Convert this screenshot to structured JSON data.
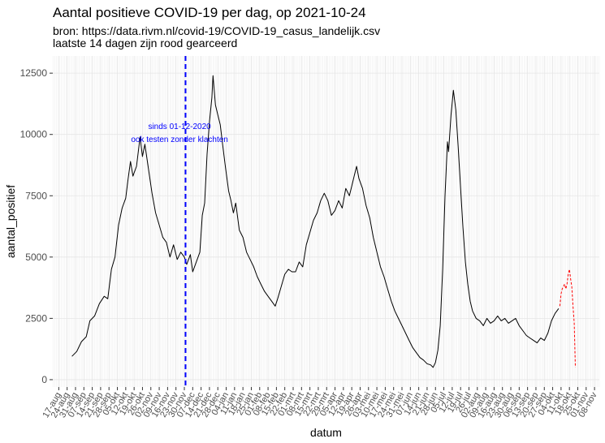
{
  "title": "Aantal positieve COVID-19 per dag, op 2021-10-24",
  "subtitle_line1": "bron: https://data.rivm.nl/covid-19/COVID-19_casus_landelijk.csv",
  "subtitle_line2": "laatste 14 dagen zijn rood gearceerd",
  "chart_data": {
    "type": "line",
    "title": "Aantal positieve COVID-19 per dag, op 2021-10-24",
    "xlabel": "datum",
    "ylabel": "aantal_positief",
    "ylim": [
      -300,
      13200
    ],
    "yticks": [
      0,
      2500,
      5000,
      7500,
      10000,
      12500
    ],
    "grid": true,
    "legend": "none",
    "xticks": [
      "17-aug",
      "24-aug",
      "31-aug",
      "07-sep",
      "14-sep",
      "21-sep",
      "28-sep",
      "05-okt",
      "12-okt",
      "19-okt",
      "26-okt",
      "02-nov",
      "09-nov",
      "16-nov",
      "23-nov",
      "30-nov",
      "07-dec",
      "14-dec",
      "21-dec",
      "28-dec",
      "04-jan",
      "11-jan",
      "18-jan",
      "25-jan",
      "01-feb",
      "08-feb",
      "15-feb",
      "22-feb",
      "01-mrt",
      "08-mrt",
      "15-mrt",
      "22-mrt",
      "29-mrt",
      "05-apr",
      "12-apr",
      "19-apr",
      "26-apr",
      "03-mei",
      "10-mei",
      "17-mei",
      "24-mei",
      "31-mei",
      "07-jun",
      "14-jun",
      "21-jun",
      "28-jun",
      "05-jul",
      "12-jul",
      "19-jul",
      "26-jul",
      "02-aug",
      "09-aug",
      "16-aug",
      "23-aug",
      "30-aug",
      "06-sep",
      "13-sep",
      "20-sep",
      "27-sep",
      "04-okt",
      "11-okt",
      "18-okt",
      "25-okt",
      "01-nov",
      "08-nov"
    ],
    "series": [
      {
        "color": "#000000",
        "style": "solid",
        "points": [
          [
            "2020-08-28",
            950
          ],
          [
            "2020-09-01",
            1150
          ],
          [
            "2020-09-05",
            1550
          ],
          [
            "2020-09-09",
            1750
          ],
          [
            "2020-09-12",
            2400
          ],
          [
            "2020-09-16",
            2600
          ],
          [
            "2020-09-20",
            3100
          ],
          [
            "2020-09-24",
            3400
          ],
          [
            "2020-09-27",
            3300
          ],
          [
            "2020-09-30",
            4500
          ],
          [
            "2020-10-03",
            5000
          ],
          [
            "2020-10-06",
            6300
          ],
          [
            "2020-10-09",
            7000
          ],
          [
            "2020-10-12",
            7400
          ],
          [
            "2020-10-14",
            8200
          ],
          [
            "2020-10-16",
            8900
          ],
          [
            "2020-10-18",
            8300
          ],
          [
            "2020-10-21",
            8700
          ],
          [
            "2020-10-24",
            9900
          ],
          [
            "2020-10-26",
            9100
          ],
          [
            "2020-10-28",
            9600
          ],
          [
            "2020-10-31",
            8600
          ],
          [
            "2020-11-03",
            7600
          ],
          [
            "2020-11-06",
            6800
          ],
          [
            "2020-11-09",
            6300
          ],
          [
            "2020-11-12",
            5800
          ],
          [
            "2020-11-15",
            5600
          ],
          [
            "2020-11-18",
            5000
          ],
          [
            "2020-11-21",
            5500
          ],
          [
            "2020-11-24",
            4900
          ],
          [
            "2020-11-27",
            5200
          ],
          [
            "2020-11-30",
            5000
          ],
          [
            "2020-12-02",
            4700
          ],
          [
            "2020-12-05",
            5100
          ],
          [
            "2020-12-07",
            4400
          ],
          [
            "2020-12-10",
            4800
          ],
          [
            "2020-12-13",
            5200
          ],
          [
            "2020-12-15",
            6700
          ],
          [
            "2020-12-17",
            7200
          ],
          [
            "2020-12-19",
            9200
          ],
          [
            "2020-12-21",
            10500
          ],
          [
            "2020-12-23",
            11500
          ],
          [
            "2020-12-24",
            12400
          ],
          [
            "2020-12-26",
            11200
          ],
          [
            "2020-12-28",
            10800
          ],
          [
            "2020-12-30",
            10400
          ],
          [
            "2021-01-01",
            9600
          ],
          [
            "2021-01-03",
            8800
          ],
          [
            "2021-01-06",
            7700
          ],
          [
            "2021-01-08",
            7300
          ],
          [
            "2021-01-10",
            6800
          ],
          [
            "2021-01-12",
            7200
          ],
          [
            "2021-01-15",
            6100
          ],
          [
            "2021-01-18",
            5800
          ],
          [
            "2021-01-21",
            5200
          ],
          [
            "2021-01-24",
            4900
          ],
          [
            "2021-01-27",
            4600
          ],
          [
            "2021-01-30",
            4200
          ],
          [
            "2021-02-02",
            3900
          ],
          [
            "2021-02-05",
            3600
          ],
          [
            "2021-02-08",
            3400
          ],
          [
            "2021-02-11",
            3200
          ],
          [
            "2021-02-14",
            3000
          ],
          [
            "2021-02-16",
            3300
          ],
          [
            "2021-02-19",
            3800
          ],
          [
            "2021-02-22",
            4300
          ],
          [
            "2021-02-25",
            4500
          ],
          [
            "2021-02-28",
            4400
          ],
          [
            "2021-03-03",
            4400
          ],
          [
            "2021-03-06",
            4800
          ],
          [
            "2021-03-09",
            4600
          ],
          [
            "2021-03-12",
            5500
          ],
          [
            "2021-03-15",
            6000
          ],
          [
            "2021-03-18",
            6500
          ],
          [
            "2021-03-21",
            6800
          ],
          [
            "2021-03-24",
            7300
          ],
          [
            "2021-03-27",
            7600
          ],
          [
            "2021-03-30",
            7300
          ],
          [
            "2021-04-02",
            6700
          ],
          [
            "2021-04-05",
            6900
          ],
          [
            "2021-04-08",
            7300
          ],
          [
            "2021-04-11",
            7000
          ],
          [
            "2021-04-14",
            7800
          ],
          [
            "2021-04-17",
            7500
          ],
          [
            "2021-04-19",
            7900
          ],
          [
            "2021-04-21",
            8300
          ],
          [
            "2021-04-23",
            8700
          ],
          [
            "2021-04-25",
            8200
          ],
          [
            "2021-04-28",
            7800
          ],
          [
            "2021-05-01",
            7100
          ],
          [
            "2021-05-04",
            6600
          ],
          [
            "2021-05-07",
            5800
          ],
          [
            "2021-05-10",
            5200
          ],
          [
            "2021-05-13",
            4600
          ],
          [
            "2021-05-16",
            4200
          ],
          [
            "2021-05-19",
            3700
          ],
          [
            "2021-05-22",
            3200
          ],
          [
            "2021-05-25",
            2800
          ],
          [
            "2021-05-28",
            2500
          ],
          [
            "2021-05-31",
            2200
          ],
          [
            "2021-06-03",
            1900
          ],
          [
            "2021-06-06",
            1600
          ],
          [
            "2021-06-09",
            1300
          ],
          [
            "2021-06-12",
            1100
          ],
          [
            "2021-06-15",
            900
          ],
          [
            "2021-06-18",
            800
          ],
          [
            "2021-06-21",
            650
          ],
          [
            "2021-06-24",
            600
          ],
          [
            "2021-06-26",
            500
          ],
          [
            "2021-06-28",
            700
          ],
          [
            "2021-06-30",
            1200
          ],
          [
            "2021-07-02",
            2200
          ],
          [
            "2021-07-04",
            4500
          ],
          [
            "2021-07-06",
            7500
          ],
          [
            "2021-07-08",
            9700
          ],
          [
            "2021-07-09",
            9300
          ],
          [
            "2021-07-11",
            10800
          ],
          [
            "2021-07-13",
            11800
          ],
          [
            "2021-07-15",
            11000
          ],
          [
            "2021-07-17",
            9500
          ],
          [
            "2021-07-19",
            7800
          ],
          [
            "2021-07-21",
            6200
          ],
          [
            "2021-07-23",
            4800
          ],
          [
            "2021-07-25",
            3900
          ],
          [
            "2021-07-27",
            3200
          ],
          [
            "2021-07-29",
            2800
          ],
          [
            "2021-08-01",
            2500
          ],
          [
            "2021-08-04",
            2400
          ],
          [
            "2021-08-07",
            2200
          ],
          [
            "2021-08-10",
            2500
          ],
          [
            "2021-08-13",
            2300
          ],
          [
            "2021-08-16",
            2400
          ],
          [
            "2021-08-19",
            2600
          ],
          [
            "2021-08-22",
            2400
          ],
          [
            "2021-08-25",
            2500
          ],
          [
            "2021-08-28",
            2300
          ],
          [
            "2021-08-31",
            2400
          ],
          [
            "2021-09-03",
            2500
          ],
          [
            "2021-09-06",
            2200
          ],
          [
            "2021-09-09",
            2000
          ],
          [
            "2021-09-12",
            1800
          ],
          [
            "2021-09-15",
            1700
          ],
          [
            "2021-09-18",
            1600
          ],
          [
            "2021-09-21",
            1500
          ],
          [
            "2021-09-24",
            1700
          ],
          [
            "2021-09-27",
            1600
          ],
          [
            "2021-09-30",
            1900
          ],
          [
            "2021-10-03",
            2400
          ],
          [
            "2021-10-06",
            2700
          ],
          [
            "2021-10-09",
            2900
          ]
        ]
      },
      {
        "color": "#ff0000",
        "style": "dashed",
        "points": [
          [
            "2021-10-10",
            3000
          ],
          [
            "2021-10-11",
            3500
          ],
          [
            "2021-10-12",
            3700
          ],
          [
            "2021-10-13",
            3800
          ],
          [
            "2021-10-14",
            3900
          ],
          [
            "2021-10-15",
            3700
          ],
          [
            "2021-10-16",
            3900
          ],
          [
            "2021-10-17",
            4300
          ],
          [
            "2021-10-18",
            4500
          ],
          [
            "2021-10-19",
            4100
          ],
          [
            "2021-10-20",
            3800
          ],
          [
            "2021-10-21",
            3000
          ],
          [
            "2021-10-22",
            2300
          ],
          [
            "2021-10-23",
            500
          ]
        ]
      }
    ],
    "annotations": [
      {
        "type": "vline",
        "x": "2020-12-01",
        "color": "#0000ff",
        "style": "dashed"
      },
      {
        "type": "text",
        "lines": [
          "sinds 01-12-2020",
          "ook testen zonder klachten"
        ],
        "color": "#0000ff"
      }
    ]
  }
}
